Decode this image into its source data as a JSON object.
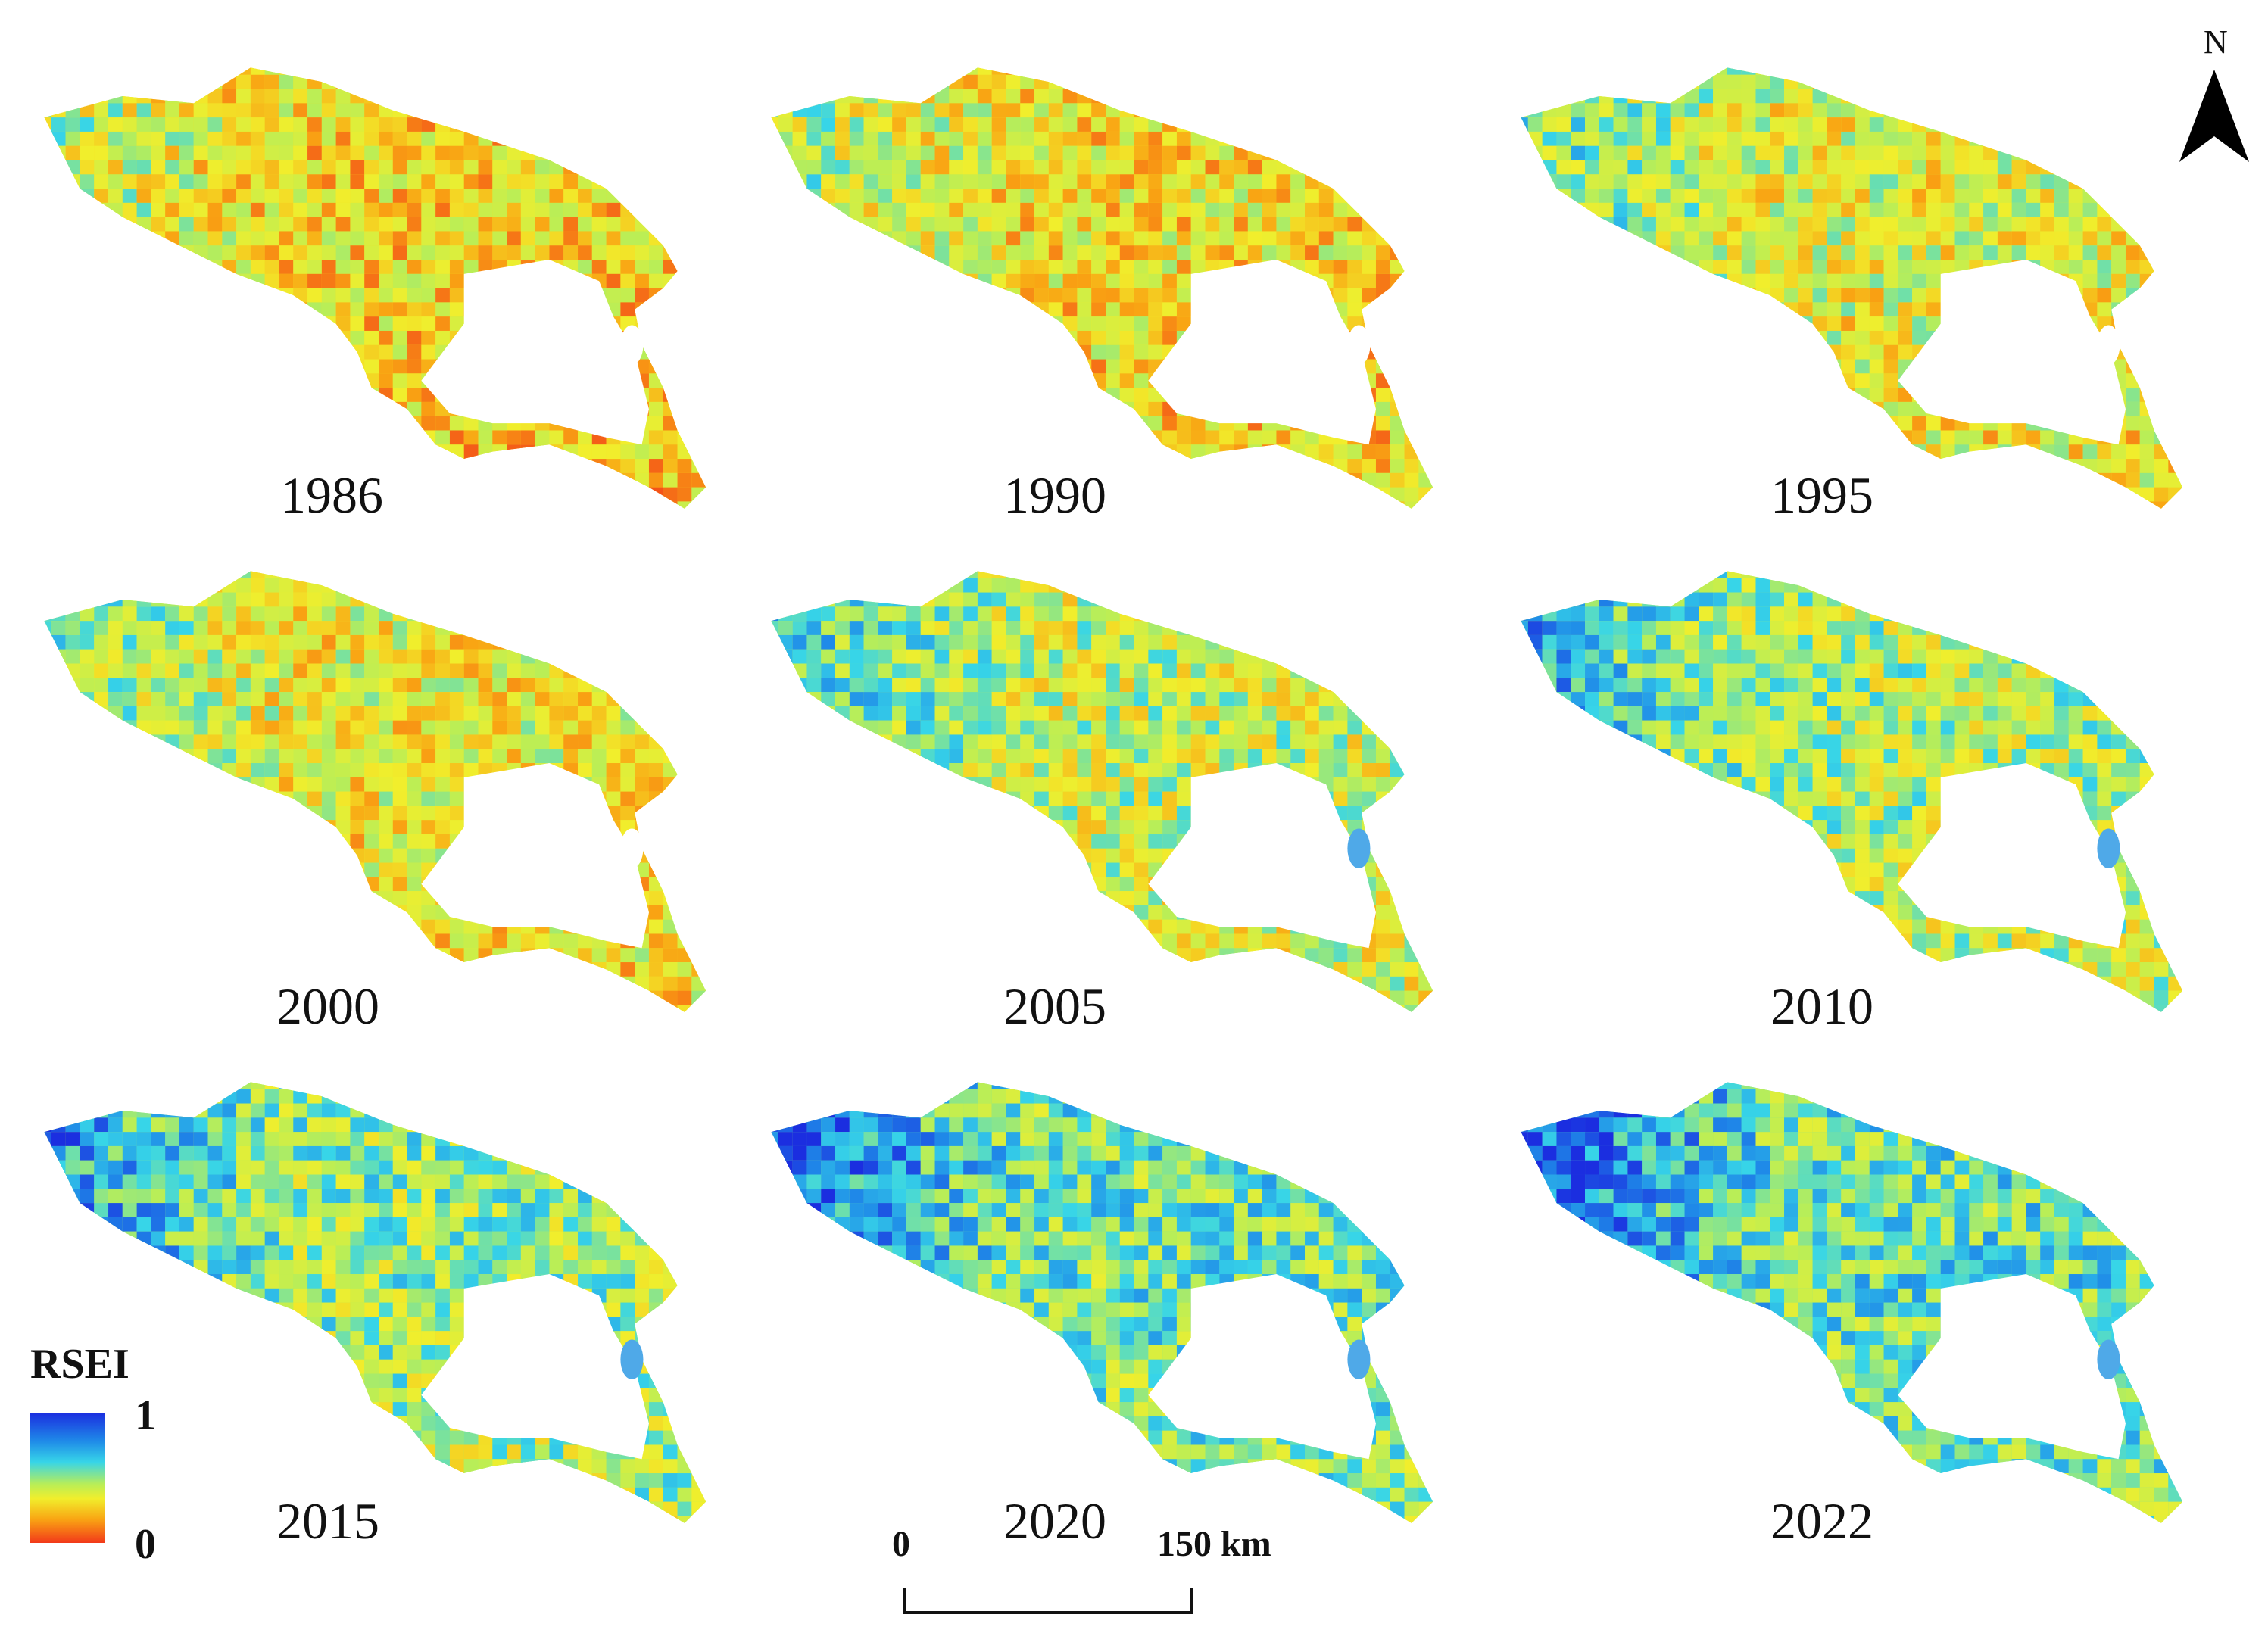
{
  "panels": [
    {
      "year": "1986",
      "rsei": 0.3
    },
    {
      "year": "1990",
      "rsei": 0.32
    },
    {
      "year": "1995",
      "rsei": 0.38
    },
    {
      "year": "2000",
      "rsei": 0.36
    },
    {
      "year": "2005",
      "rsei": 0.44
    },
    {
      "year": "2010",
      "rsei": 0.48
    },
    {
      "year": "2015",
      "rsei": 0.52
    },
    {
      "year": "2020",
      "rsei": 0.58
    },
    {
      "year": "2022",
      "rsei": 0.6
    }
  ],
  "legend": {
    "title": "RSEI",
    "max": "1",
    "min": "0",
    "colors": [
      "#1b2ee0",
      "#1f8be8",
      "#37d5e8",
      "#b9ee57",
      "#f1ee2c",
      "#f9a413",
      "#f2391a"
    ]
  },
  "scale": {
    "zero": "0",
    "end": "150 km"
  },
  "north": {
    "letter": "N"
  },
  "colors": {
    "lake": "#ffffff",
    "water": "#4fa9e8",
    "text": "#111111"
  }
}
